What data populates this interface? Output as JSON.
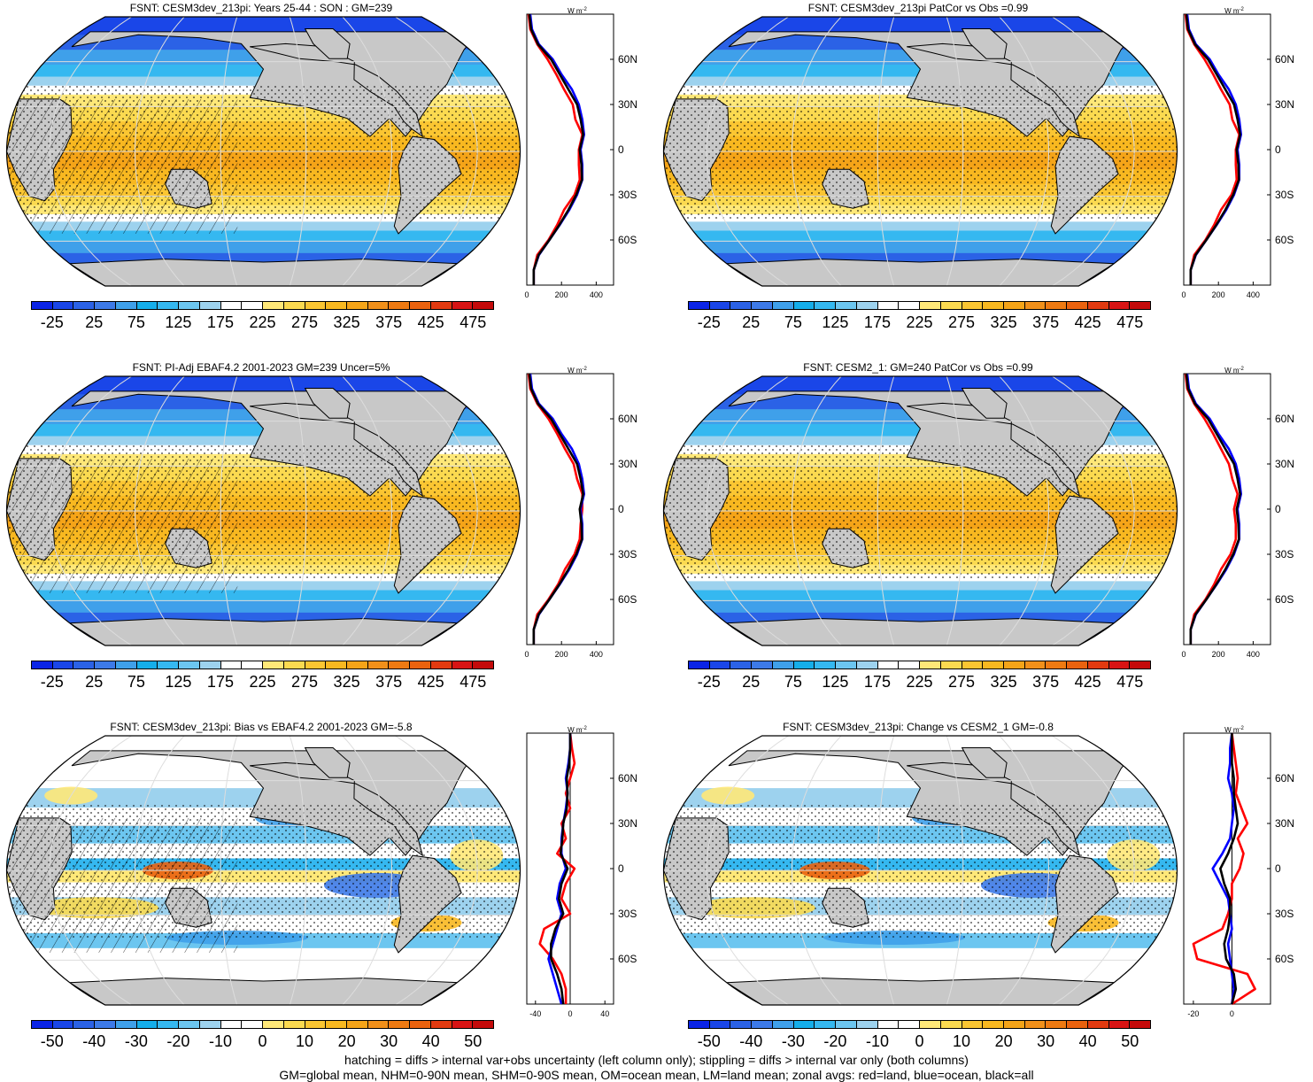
{
  "colors": {
    "land": "#c8c8c8",
    "coast": "#000000",
    "grid": "#dddddd",
    "zonal_land": "#ff0000",
    "zonal_ocean": "#0000ff",
    "zonal_all": "#000000"
  },
  "colorbar_abs": {
    "labels": [
      "-25",
      "25",
      "75",
      "125",
      "175",
      "225",
      "275",
      "325",
      "375",
      "425",
      "475"
    ],
    "colors": [
      "#0b24e6",
      "#1a46e8",
      "#2b62e6",
      "#3d7ae8",
      "#3fa0ea",
      "#15aeea",
      "#35b8f0",
      "#6cc6f0",
      "#9dd2ee",
      "#ffffff",
      "#ffffff",
      "#ffe878",
      "#fbda50",
      "#fbc632",
      "#f8b820",
      "#f5a418",
      "#f1901a",
      "#ee7a12",
      "#ea620e",
      "#e23a10",
      "#d81414",
      "#c40a0a"
    ]
  },
  "colorbar_diff": {
    "labels": [
      "-50",
      "-40",
      "-30",
      "-20",
      "-10",
      "0",
      "10",
      "20",
      "30",
      "40",
      "50"
    ],
    "colors": [
      "#0b24e6",
      "#1a46e8",
      "#2b62e6",
      "#3d7ae8",
      "#3fa0ea",
      "#15aeea",
      "#35b8f0",
      "#6cc6f0",
      "#9dd2ee",
      "#ffffff",
      "#ffffff",
      "#ffe878",
      "#fbda50",
      "#fbc632",
      "#f8b820",
      "#f5a418",
      "#f1901a",
      "#ee7a12",
      "#ea620e",
      "#e23a10",
      "#d81414",
      "#c40a0a"
    ]
  },
  "zonal_axis": {
    "unit": "W m",
    "unit_sup": "-2",
    "lat_ticks": [
      "60N",
      "30N",
      "0",
      "30S",
      "60S"
    ],
    "abs_ticks": [
      "0",
      "200",
      "400"
    ],
    "diff_left_ticks": [
      "-40",
      "0",
      "40"
    ],
    "diff_right_ticks": [
      "-20",
      "0"
    ]
  },
  "panels": [
    {
      "id": "p1",
      "kind": "abs",
      "title": "FSNT: CESM3dev_213pi: Years 25-44 : SON : GM=239",
      "hatch": true
    },
    {
      "id": "p2",
      "kind": "abs",
      "title": "FSNT: CESM3dev_213pi PatCor vs Obs =0.99",
      "hatch": false
    },
    {
      "id": "p3",
      "kind": "abs",
      "title": "FSNT: PI-Adj EBAF4.2 2001-2023 GM=239 Uncer=5%",
      "hatch": true
    },
    {
      "id": "p4",
      "kind": "abs",
      "title": "FSNT: CESM2_1: GM=240 PatCor vs Obs =0.99",
      "hatch": false
    },
    {
      "id": "p5",
      "kind": "diff_left",
      "title": "FSNT: CESM3dev_213pi: Bias vs EBAF4.2 2001-2023  GM=-5.8",
      "hatch": true
    },
    {
      "id": "p6",
      "kind": "diff_right",
      "title": "FSNT: CESM3dev_213pi: Change vs CESM2_1 GM=-0.8",
      "hatch": false
    }
  ],
  "footer": {
    "line1": "hatching = diffs > internal var+obs uncertainty (left column only); stippling = diffs > internal var only (both columns)",
    "line2": "GM=global mean, NHM=0-90N mean, SHM=0-90S mean, OM=ocean mean, LM=land mean; zonal avgs: red=land, blue=ocean, black=all"
  },
  "chart_data": [
    {
      "type": "line",
      "title": "FSNT: CESM3dev_213pi: Years 25-44 : SON : GM=239",
      "xlabel": "W m-2",
      "ylabel": "",
      "xlim": [
        0,
        500
      ],
      "ylim": [
        -90,
        90
      ],
      "x_ticks": [
        0,
        200,
        400
      ],
      "y_ticks": [
        "60N",
        "30N",
        "0",
        "30S",
        "60S"
      ],
      "lat": [
        90,
        80,
        70,
        60,
        50,
        40,
        30,
        20,
        10,
        0,
        -10,
        -20,
        -30,
        -40,
        -50,
        -60,
        -70,
        -80,
        -90
      ],
      "series": [
        {
          "name": "red=land",
          "values": [
            10,
            20,
            60,
            120,
            170,
            215,
            265,
            280,
            320,
            300,
            300,
            305,
            275,
            215,
            175,
            125,
            60,
            40,
            40
          ]
        },
        {
          "name": "blue=ocean",
          "values": [
            20,
            30,
            70,
            150,
            200,
            260,
            300,
            320,
            330,
            310,
            320,
            320,
            290,
            245,
            190,
            130,
            70,
            40,
            40
          ]
        },
        {
          "name": "black=all",
          "values": [
            15,
            25,
            65,
            140,
            190,
            240,
            290,
            310,
            325,
            305,
            315,
            318,
            285,
            240,
            188,
            130,
            68,
            40,
            40
          ]
        }
      ]
    },
    {
      "type": "line",
      "title": "FSNT: CESM3dev_213pi PatCor vs Obs =0.99",
      "xlabel": "W m-2",
      "ylabel": "",
      "xlim": [
        0,
        500
      ],
      "ylim": [
        -90,
        90
      ],
      "x_ticks": [
        0,
        200,
        400
      ],
      "y_ticks": [
        "60N",
        "30N",
        "0",
        "30S",
        "60S"
      ],
      "lat": [
        90,
        80,
        70,
        60,
        50,
        40,
        30,
        20,
        10,
        0,
        -10,
        -20,
        -30,
        -40,
        -50,
        -60,
        -70,
        -80,
        -90
      ],
      "series": [
        {
          "name": "red=land",
          "values": [
            10,
            20,
            60,
            120,
            170,
            215,
            265,
            280,
            320,
            300,
            300,
            305,
            275,
            215,
            175,
            125,
            60,
            40,
            40
          ]
        },
        {
          "name": "blue=ocean",
          "values": [
            20,
            30,
            70,
            150,
            200,
            260,
            300,
            320,
            330,
            310,
            320,
            320,
            290,
            245,
            190,
            130,
            70,
            40,
            40
          ]
        },
        {
          "name": "black=all",
          "values": [
            15,
            25,
            65,
            140,
            190,
            240,
            290,
            310,
            325,
            305,
            315,
            318,
            285,
            240,
            188,
            130,
            68,
            40,
            40
          ]
        }
      ]
    },
    {
      "type": "line",
      "title": "FSNT: PI-Adj EBAF4.2 2001-2023 GM=239 Uncer=5%",
      "xlabel": "W m-2",
      "ylabel": "",
      "xlim": [
        0,
        500
      ],
      "ylim": [
        -90,
        90
      ],
      "x_ticks": [
        0,
        200,
        400
      ],
      "y_ticks": [
        "60N",
        "30N",
        "0",
        "30S",
        "60S"
      ],
      "lat": [
        90,
        80,
        70,
        60,
        50,
        40,
        30,
        20,
        10,
        0,
        -10,
        -20,
        -30,
        -40,
        -50,
        -60,
        -70,
        -80,
        -90
      ],
      "series": [
        {
          "name": "red=land",
          "values": [
            10,
            20,
            60,
            125,
            175,
            220,
            270,
            290,
            320,
            320,
            310,
            305,
            275,
            220,
            180,
            125,
            60,
            40,
            40
          ]
        },
        {
          "name": "blue=ocean",
          "values": [
            20,
            30,
            70,
            150,
            200,
            260,
            300,
            320,
            330,
            310,
            320,
            320,
            290,
            245,
            190,
            130,
            70,
            40,
            40
          ]
        },
        {
          "name": "black=all",
          "values": [
            15,
            25,
            65,
            140,
            190,
            240,
            290,
            310,
            325,
            305,
            315,
            318,
            285,
            240,
            188,
            130,
            68,
            40,
            40
          ]
        }
      ]
    },
    {
      "type": "line",
      "title": "FSNT: CESM2_1: GM=240 PatCor vs Obs =0.99",
      "xlabel": "W m-2",
      "ylabel": "",
      "xlim": [
        0,
        500
      ],
      "ylim": [
        -90,
        90
      ],
      "x_ticks": [
        0,
        200,
        400
      ],
      "y_ticks": [
        "60N",
        "30N",
        "0",
        "30S",
        "60S"
      ],
      "lat": [
        90,
        80,
        70,
        60,
        50,
        40,
        30,
        20,
        10,
        0,
        -10,
        -20,
        -30,
        -40,
        -50,
        -60,
        -70,
        -80,
        -90
      ],
      "series": [
        {
          "name": "red=land",
          "values": [
            10,
            20,
            60,
            120,
            170,
            215,
            260,
            280,
            310,
            290,
            300,
            300,
            270,
            215,
            175,
            125,
            60,
            40,
            40
          ]
        },
        {
          "name": "blue=ocean",
          "values": [
            20,
            30,
            70,
            150,
            200,
            260,
            300,
            320,
            330,
            310,
            320,
            320,
            290,
            245,
            190,
            130,
            70,
            40,
            40
          ]
        },
        {
          "name": "black=all",
          "values": [
            15,
            25,
            65,
            140,
            190,
            240,
            290,
            310,
            325,
            305,
            315,
            318,
            285,
            240,
            188,
            130,
            68,
            40,
            40
          ]
        }
      ]
    },
    {
      "type": "line",
      "title": "FSNT: CESM3dev_213pi: Bias vs EBAF4.2 2001-2023  GM=-5.8",
      "xlabel": "W m-2",
      "ylabel": "",
      "xlim": [
        -50,
        50
      ],
      "ylim": [
        -90,
        90
      ],
      "x_ticks": [
        -40,
        0,
        40
      ],
      "y_ticks": [
        "60N",
        "30N",
        "0",
        "30S",
        "60S"
      ],
      "lat": [
        90,
        80,
        70,
        60,
        50,
        40,
        30,
        20,
        10,
        0,
        -10,
        -20,
        -30,
        -40,
        -50,
        -60,
        -70,
        -80,
        -90
      ],
      "series": [
        {
          "name": "red=land",
          "values": [
            0,
            2,
            5,
            0,
            -5,
            0,
            -10,
            -5,
            -15,
            5,
            -5,
            -10,
            0,
            -30,
            -35,
            -20,
            -10,
            -5,
            -5
          ]
        },
        {
          "name": "blue=ocean",
          "values": [
            0,
            0,
            -2,
            -5,
            -3,
            -5,
            -8,
            -10,
            -10,
            -5,
            -12,
            -15,
            -10,
            -15,
            -20,
            -25,
            -20,
            -15,
            -10
          ]
        },
        {
          "name": "black=all",
          "values": [
            0,
            0,
            -1,
            -4,
            -3,
            -4,
            -8,
            -9,
            -11,
            -3,
            -10,
            -13,
            -8,
            -17,
            -22,
            -22,
            -15,
            -10,
            -8
          ]
        }
      ]
    },
    {
      "type": "line",
      "title": "FSNT: CESM3dev_213pi: Change vs CESM2_1 GM=-0.8",
      "xlabel": "W m-2",
      "ylabel": "",
      "xlim": [
        -25,
        20
      ],
      "ylim": [
        -90,
        90
      ],
      "x_ticks": [
        -20,
        0
      ],
      "y_ticks": [
        "60N",
        "30N",
        "0",
        "30S",
        "60S"
      ],
      "lat": [
        90,
        80,
        70,
        60,
        50,
        40,
        30,
        20,
        10,
        0,
        -10,
        -20,
        -30,
        -40,
        -50,
        -60,
        -70,
        -80,
        -90
      ],
      "series": [
        {
          "name": "red=land",
          "values": [
            0,
            1,
            2,
            3,
            2,
            5,
            8,
            3,
            6,
            4,
            0,
            0,
            -2,
            -5,
            -20,
            -18,
            8,
            12,
            0
          ]
        },
        {
          "name": "blue=ocean",
          "values": [
            0,
            -1,
            -1,
            -2,
            0,
            1,
            0,
            -1,
            -5,
            -10,
            -6,
            -2,
            -1,
            0,
            -2,
            -1,
            0,
            1,
            0
          ]
        },
        {
          "name": "black=all",
          "values": [
            0,
            0,
            0,
            1,
            1,
            2,
            3,
            1,
            -2,
            -6,
            -4,
            -1,
            -1,
            -2,
            -4,
            -3,
            1,
            2,
            0
          ]
        }
      ]
    }
  ]
}
